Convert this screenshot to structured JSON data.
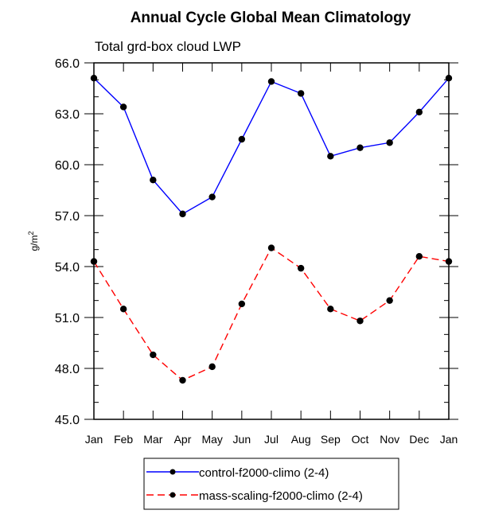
{
  "chart_data": {
    "type": "line",
    "title": "Annual Cycle Global Mean Climatology",
    "subtitle": "Total grd-box cloud LWP",
    "xlabel": "",
    "ylabel": "g/m",
    "ylabel_superscript": "2",
    "categories": [
      "Jan",
      "Feb",
      "Mar",
      "Apr",
      "May",
      "Jun",
      "Jul",
      "Aug",
      "Sep",
      "Oct",
      "Nov",
      "Dec",
      "Jan"
    ],
    "ylim": [
      45.0,
      66.0
    ],
    "y_major_ticks": [
      "45.0",
      "48.0",
      "51.0",
      "54.0",
      "57.0",
      "60.0",
      "63.0",
      "66.0"
    ],
    "y_minor_step": 1.0,
    "grid": false,
    "legend_position": "bottom-center",
    "series": [
      {
        "name": "control-f2000-climo (2-4)",
        "color": "#0000ff",
        "line_style": "solid",
        "marker": "dot",
        "values": [
          65.1,
          63.4,
          59.1,
          57.1,
          58.1,
          61.5,
          64.9,
          64.2,
          60.5,
          61.0,
          61.3,
          63.1,
          65.1
        ]
      },
      {
        "name": "mass-scaling-f2000-climo (2-4)",
        "color": "#ff0000",
        "line_style": "dashed",
        "marker": "dot",
        "values": [
          54.3,
          51.5,
          48.8,
          47.3,
          48.1,
          51.8,
          55.1,
          53.9,
          51.5,
          50.8,
          52.0,
          54.6,
          54.3
        ]
      }
    ]
  }
}
